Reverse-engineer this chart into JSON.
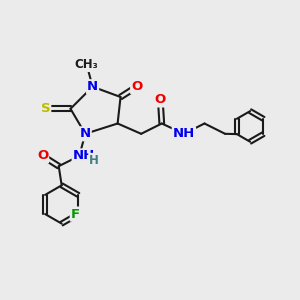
{
  "bg_color": "#ebebeb",
  "bond_color": "#1a1a1a",
  "bond_width": 1.5,
  "atom_colors": {
    "N": "#0000ee",
    "O": "#ee0000",
    "S": "#bbbb00",
    "F": "#009900",
    "C": "#1a1a1a",
    "H": "#408080"
  },
  "fs": 9.5,
  "fs_small": 8.5,
  "xlim": [
    0,
    10
  ],
  "ylim": [
    0,
    10
  ]
}
